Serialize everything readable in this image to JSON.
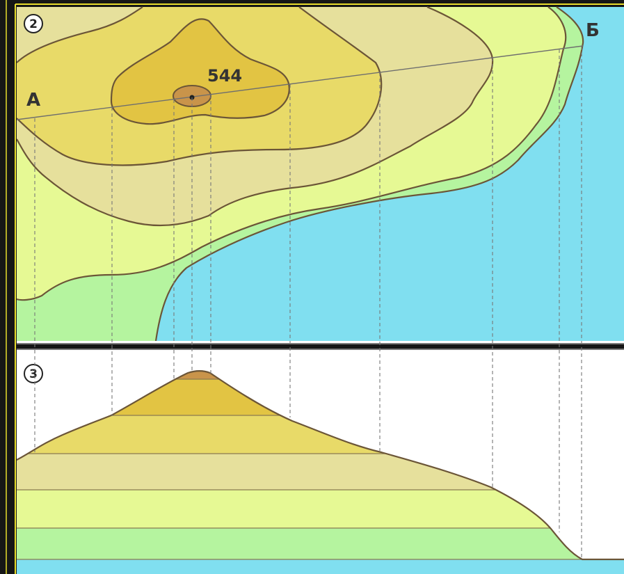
{
  "map": {
    "panel_number": "2",
    "point_a": "А",
    "point_b": "Б",
    "summit_elevation": "544"
  },
  "profile": {
    "panel_number": "3"
  },
  "colors": {
    "background": "#161616",
    "frame": "#e8dd2c",
    "water": "#80dff0",
    "band_lowest": "#b5f49f",
    "band_low": "#e6f994",
    "band_mid": "#e6e09c",
    "band_upper": "#e8da68",
    "band_top": "#e2c443",
    "summit": "#c9944a",
    "contour_line": "#6b5537"
  }
}
